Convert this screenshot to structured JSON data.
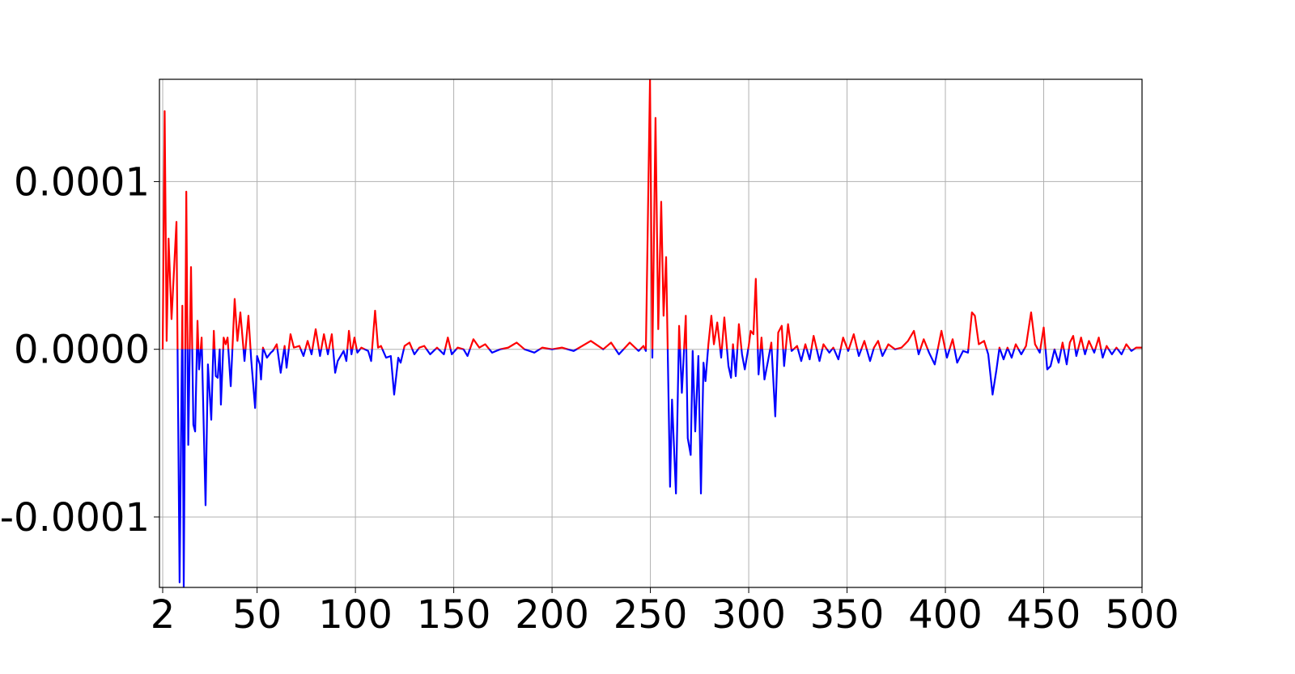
{
  "chart_data": {
    "type": "line",
    "color_positive": "#ff0000",
    "color_negative": "#0000ff",
    "grid": true,
    "xlim": [
      0.35,
      500
    ],
    "ylim": [
      -0.000142,
      0.000161
    ],
    "xticks": [
      2,
      50,
      100,
      150,
      200,
      250,
      300,
      350,
      400,
      450,
      500
    ],
    "yticks": [
      -0.0001,
      {
        "value": 0,
        "label": "0.0000"
      },
      0.0001
    ],
    "x": [
      2,
      3,
      4,
      5,
      6.5,
      9,
      10.6,
      12,
      12.7,
      14,
      15,
      16.4,
      17.6,
      18.5,
      19.7,
      20.5,
      21.8,
      23.8,
      25,
      26.7,
      28,
      29,
      30,
      31,
      31.6,
      33,
      34,
      35,
      36.6,
      38.6,
      40,
      41.5,
      43.6,
      45.6,
      47,
      49,
      50,
      51.4,
      52,
      53,
      55,
      57,
      58,
      60,
      62,
      64,
      65,
      67,
      68.7,
      71.5,
      73.6,
      75.7,
      77.7,
      79.8,
      82,
      84,
      86,
      88,
      89.7,
      91,
      94,
      95.4,
      96.7,
      98,
      99.5,
      101,
      103,
      106.5,
      108,
      110,
      111.5,
      113,
      115.6,
      118,
      119.7,
      121.8,
      123,
      125,
      127.5,
      130,
      132.5,
      135,
      138,
      141.5,
      145,
      147,
      149,
      152,
      155,
      157,
      160,
      163,
      166,
      169.5,
      173.6,
      177.7,
      182,
      186,
      191,
      195,
      200,
      205,
      211,
      219.7,
      226,
      230,
      234,
      239.5,
      244,
      246.5,
      247.7,
      249.8,
      251,
      252.6,
      254,
      255.5,
      256.7,
      258,
      260,
      261,
      263,
      264.6,
      266,
      268,
      269,
      270.5,
      271.5,
      272.8,
      274.4,
      275.7,
      277,
      278,
      279.5,
      281,
      282.3,
      284,
      286,
      287.6,
      289.7,
      291,
      292,
      293.4,
      295,
      296.6,
      298,
      300,
      301,
      302.4,
      303.6,
      305,
      306.5,
      308,
      309.8,
      311.5,
      313.5,
      315,
      316.8,
      318,
      320,
      321.8,
      324.6,
      326.7,
      328.8,
      331,
      333,
      336,
      338,
      341,
      343,
      345.6,
      348,
      350.6,
      353.4,
      356,
      358.8,
      361.7,
      363.7,
      365.8,
      368,
      371,
      374.4,
      377.7,
      381,
      384,
      386.4,
      389,
      391.7,
      394.6,
      398,
      400.8,
      403.7,
      406,
      409,
      411.5,
      413.5,
      415,
      417,
      419.7,
      421.8,
      424,
      426,
      427.5,
      429.6,
      431.6,
      433.7,
      435.8,
      438.6,
      441,
      443.6,
      445.6,
      448,
      450,
      451.8,
      453.5,
      455.5,
      457.6,
      459.6,
      461.7,
      463.3,
      465,
      466.6,
      469,
      471,
      473,
      475.7,
      478,
      480,
      482,
      484.7,
      487,
      489.6,
      492,
      494.6,
      497,
      500
    ],
    "y": [
      0,
      0.000142,
      5e-06,
      6.6e-05,
      1.8e-05,
      7.6e-05,
      -0.000139,
      2.6e-05,
      -0.000142,
      9.4e-05,
      -5.7e-05,
      4.9e-05,
      -4.5e-05,
      -4.9e-05,
      1.7e-05,
      -1.2e-05,
      7e-06,
      -9.3e-05,
      -9e-06,
      -4.2e-05,
      1.1e-05,
      -1.6e-05,
      -1.7e-05,
      0,
      -3.3e-05,
      7e-06,
      3e-06,
      7e-06,
      -2.2e-05,
      3e-05,
      5e-06,
      2.2e-05,
      -7e-06,
      2e-05,
      -6e-06,
      -3.5e-05,
      -4e-06,
      -9e-06,
      -1.8e-05,
      1e-06,
      -5e-06,
      -2e-06,
      -1e-06,
      3e-06,
      -1.4e-05,
      2e-06,
      -1.1e-05,
      9e-06,
      1e-06,
      2e-06,
      -4e-06,
      5e-06,
      -3e-06,
      1.2e-05,
      -4e-06,
      9e-06,
      -3e-06,
      9e-06,
      -1.4e-05,
      -7e-06,
      -1e-06,
      -7e-06,
      1.1e-05,
      -3e-06,
      7e-06,
      -2e-06,
      1e-06,
      -1e-06,
      -7e-06,
      2.3e-05,
      1e-06,
      2e-06,
      -5e-06,
      -4e-06,
      -2.7e-05,
      -5e-06,
      -8e-06,
      2e-06,
      4e-06,
      -3e-06,
      1e-06,
      2e-06,
      -3e-06,
      1e-06,
      -3e-06,
      7e-06,
      -3e-06,
      1e-06,
      0,
      -4e-06,
      6e-06,
      1e-06,
      3e-06,
      -2e-06,
      0,
      1e-06,
      4e-06,
      0,
      -2e-06,
      1e-06,
      0,
      1e-06,
      -1e-06,
      5e-06,
      0,
      4e-06,
      -3e-06,
      4e-06,
      -1e-06,
      2e-06,
      -1e-06,
      0.000161,
      -5e-06,
      0.000138,
      1.2e-05,
      8.8e-05,
      2e-05,
      5.5e-05,
      -8.2e-05,
      -3e-05,
      -8.6e-05,
      1.4e-05,
      -2.6e-05,
      2e-05,
      -5.3e-05,
      -6.3e-05,
      -1e-06,
      -4.9e-05,
      -4e-06,
      -8.6e-05,
      -8e-06,
      -1.9e-05,
      3e-06,
      2e-05,
      3e-06,
      1.6e-05,
      -5e-06,
      1.9e-05,
      -1e-05,
      -1.7e-05,
      3e-06,
      -1.6e-05,
      1.5e-05,
      -3e-06,
      -1.2e-05,
      2e-06,
      1.1e-05,
      9e-06,
      4.2e-05,
      -1.5e-05,
      7e-06,
      -1.8e-05,
      -7e-06,
      4e-06,
      -4e-05,
      1e-05,
      1.4e-05,
      -1e-05,
      1.5e-05,
      -1e-06,
      2e-06,
      -7e-06,
      3e-06,
      -6e-06,
      8e-06,
      -7e-06,
      3e-06,
      -2e-06,
      1e-06,
      -6e-06,
      7e-06,
      -1e-06,
      9e-06,
      -4e-06,
      5e-06,
      -7e-06,
      1e-06,
      5e-06,
      -4e-06,
      3e-06,
      0,
      1e-06,
      5e-06,
      1.1e-05,
      -3e-06,
      6e-06,
      -2e-06,
      -9e-06,
      1.1e-05,
      -5e-06,
      6e-06,
      -8e-06,
      -1e-06,
      -2e-06,
      2.2e-05,
      2e-05,
      3e-06,
      5e-06,
      -3e-06,
      -2.7e-05,
      -1.2e-05,
      1e-06,
      -6e-06,
      1e-06,
      -5e-06,
      3e-06,
      -3e-06,
      2e-06,
      2.2e-05,
      3e-06,
      -2e-06,
      1.3e-05,
      -1.2e-05,
      -1e-05,
      0,
      -8e-06,
      4e-06,
      -9e-06,
      4e-06,
      8e-06,
      -4e-06,
      7e-06,
      -3e-06,
      5e-06,
      -2e-06,
      7e-06,
      -5e-06,
      2e-06,
      -3e-06,
      1e-06,
      -3e-06,
      3e-06,
      -1e-06,
      1e-06,
      1e-06
    ]
  }
}
